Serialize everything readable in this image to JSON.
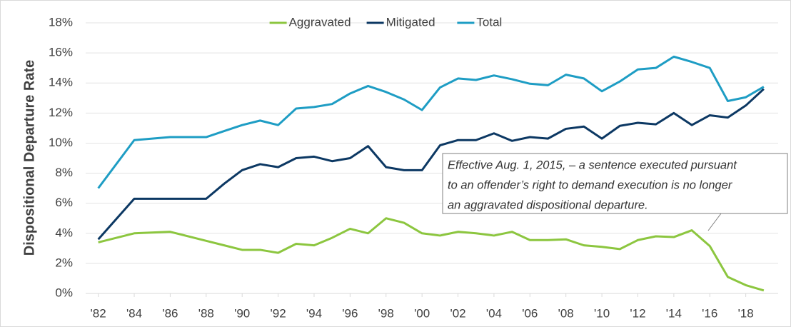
{
  "chart_data": {
    "type": "line",
    "y_label": "Dispositional Departure Rate",
    "x": [
      1982,
      1984,
      1986,
      1988,
      1989,
      1990,
      1991,
      1992,
      1993,
      1994,
      1995,
      1996,
      1997,
      1998,
      1999,
      2000,
      2001,
      2002,
      2003,
      2004,
      2005,
      2006,
      2007,
      2008,
      2009,
      2010,
      2011,
      2012,
      2013,
      2014,
      2015,
      2016,
      2017,
      2018,
      2019
    ],
    "series": [
      {
        "name": "Aggravated",
        "color": "#8cc63f",
        "values": [
          3.4,
          4.0,
          4.1,
          3.5,
          3.2,
          2.9,
          2.9,
          2.7,
          3.3,
          3.2,
          3.7,
          4.3,
          4.0,
          5.0,
          4.7,
          4.0,
          3.85,
          4.1,
          4.0,
          3.85,
          4.1,
          3.55,
          3.55,
          3.6,
          3.2,
          3.1,
          2.95,
          3.55,
          3.8,
          3.75,
          4.2,
          3.15,
          1.1,
          0.55,
          0.2
        ]
      },
      {
        "name": "Mitigated",
        "color": "#0c3863",
        "values": [
          3.6,
          6.3,
          6.3,
          6.3,
          7.3,
          8.2,
          8.6,
          8.4,
          9.0,
          9.1,
          8.8,
          9.0,
          9.8,
          8.4,
          8.2,
          8.2,
          9.85,
          10.2,
          10.2,
          10.65,
          10.15,
          10.4,
          10.3,
          10.95,
          11.1,
          10.3,
          11.15,
          11.35,
          11.25,
          12.0,
          11.2,
          11.85,
          11.7,
          12.5,
          13.6
        ]
      },
      {
        "name": "Total",
        "color": "#1e9dc4",
        "values": [
          7.0,
          10.2,
          10.4,
          10.4,
          10.8,
          11.2,
          11.5,
          11.2,
          12.3,
          12.4,
          12.6,
          13.3,
          13.8,
          13.4,
          12.9,
          12.2,
          13.7,
          14.3,
          14.2,
          14.5,
          14.25,
          13.95,
          13.85,
          14.55,
          14.3,
          13.45,
          14.1,
          14.9,
          15.0,
          15.75,
          15.4,
          15.0,
          12.8,
          13.05,
          13.75
        ]
      }
    ],
    "xlim": [
      1981.3,
      2019.8
    ],
    "xticks": [
      {
        "value": 1982,
        "label": "'82"
      },
      {
        "value": 1984,
        "label": "'84"
      },
      {
        "value": 1986,
        "label": "'86"
      },
      {
        "value": 1988,
        "label": "'88"
      },
      {
        "value": 1990,
        "label": "'90"
      },
      {
        "value": 1992,
        "label": "'92"
      },
      {
        "value": 1994,
        "label": "'94"
      },
      {
        "value": 1996,
        "label": "'96"
      },
      {
        "value": 1998,
        "label": "'98"
      },
      {
        "value": 2000,
        "label": "'00"
      },
      {
        "value": 2002,
        "label": "'02"
      },
      {
        "value": 2004,
        "label": "'04"
      },
      {
        "value": 2006,
        "label": "'06"
      },
      {
        "value": 2008,
        "label": "'08"
      },
      {
        "value": 2010,
        "label": "'10"
      },
      {
        "value": 2012,
        "label": "'12"
      },
      {
        "value": 2014,
        "label": "'14"
      },
      {
        "value": 2016,
        "label": "'16"
      },
      {
        "value": 2018,
        "label": "'18"
      }
    ],
    "ylim": [
      0,
      18
    ],
    "yticks": [
      {
        "value": 0,
        "label": "0%"
      },
      {
        "value": 2,
        "label": "2%"
      },
      {
        "value": 4,
        "label": "4%"
      },
      {
        "value": 6,
        "label": "6%"
      },
      {
        "value": 8,
        "label": "8%"
      },
      {
        "value": 10,
        "label": "10%"
      },
      {
        "value": 12,
        "label": "12%"
      },
      {
        "value": 14,
        "label": "14%"
      },
      {
        "value": 16,
        "label": "16%"
      },
      {
        "value": 18,
        "label": "18%"
      }
    ],
    "grid": true,
    "legend": "top",
    "annotation": [
      "Effective Aug. 1, 2015, – a sentence executed pursuant",
      "to an offender’s right to demand execution is no longer",
      "an aggravated dispositional departure."
    ]
  }
}
